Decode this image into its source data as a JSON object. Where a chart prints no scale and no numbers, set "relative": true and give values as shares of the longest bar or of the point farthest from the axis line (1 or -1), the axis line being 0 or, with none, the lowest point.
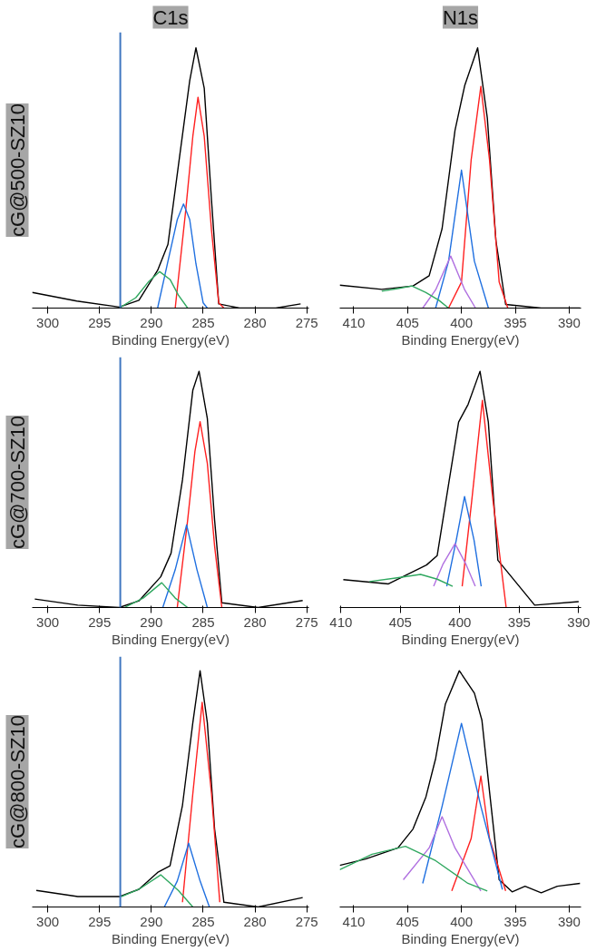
{
  "chart_data": [
    {
      "type": "line",
      "relative": true,
      "title": "C1s",
      "ylabel": "cG@500-SZ10",
      "xlabel": "Binding Energy(eV)",
      "xlim": [
        301.5,
        274.8
      ],
      "xticks": [
        300,
        295,
        290,
        285,
        280,
        275
      ],
      "ref_lines": [
        {
          "axis": "x",
          "value": 293,
          "color": "#3f77c0"
        }
      ],
      "series": [
        {
          "color": "#000000",
          "x": [
            301.5,
            297.2,
            293.1,
            291.2,
            289.4,
            288.4,
            287.4,
            286.3,
            285.7,
            284.9,
            284.2,
            283.5,
            281.5,
            278.0,
            275.6
          ],
          "values": [
            0.06,
            0.027,
            0.004,
            0.03,
            0.145,
            0.245,
            0.545,
            0.874,
            1.0,
            0.845,
            0.416,
            0.016,
            0.0,
            0.0,
            0.016
          ]
        },
        {
          "color": "#ff2020",
          "x": [
            287.7,
            286.7,
            286.0,
            285.5,
            284.9,
            284.2,
            283.5,
            283.0
          ],
          "values": [
            0,
            0.37,
            0.66,
            0.81,
            0.66,
            0.3,
            0.02,
            0
          ]
        },
        {
          "color": "#2070e0",
          "x": [
            289.4,
            288.4,
            287.5,
            286.9,
            286.3,
            285.7,
            285.0,
            284.6
          ],
          "values": [
            0,
            0.18,
            0.34,
            0.4,
            0.34,
            0.17,
            0.02,
            0
          ]
        },
        {
          "color": "#30a860",
          "x": [
            293.1,
            291.5,
            290.3,
            289.2,
            288.2,
            287.4,
            286.5
          ],
          "values": [
            0,
            0.04,
            0.1,
            0.14,
            0.11,
            0.05,
            0
          ]
        }
      ]
    },
    {
      "type": "line",
      "relative": true,
      "title": "N1s",
      "xlabel": "Binding Energy(eV)",
      "xlim": [
        411.3,
        388.9
      ],
      "xticks": [
        410,
        405,
        400,
        395,
        390
      ],
      "series": [
        {
          "color": "#000000",
          "x": [
            411.3,
            407.4,
            404.5,
            403.0,
            401.8,
            400.6,
            399.7,
            398.5,
            397.6,
            396.8,
            395.9,
            392.6,
            389.0
          ],
          "values": [
            0.088,
            0.072,
            0.085,
            0.124,
            0.305,
            0.683,
            0.855,
            1.0,
            0.73,
            0.258,
            0.014,
            0,
            0
          ]
        },
        {
          "color": "#ff2020",
          "x": [
            401.2,
            400.0,
            399.1,
            398.2,
            397.4,
            396.5,
            395.7
          ],
          "values": [
            0,
            0.1,
            0.57,
            0.852,
            0.57,
            0.1,
            0
          ]
        },
        {
          "color": "#2070e0",
          "x": [
            402.4,
            401.2,
            400.0,
            398.8,
            397.5
          ],
          "values": [
            0,
            0.18,
            0.53,
            0.18,
            0
          ]
        },
        {
          "color": "#b070e0",
          "x": [
            403.6,
            402.4,
            401.0,
            399.7,
            398.7
          ],
          "values": [
            0,
            0.07,
            0.2,
            0.07,
            0
          ]
        },
        {
          "color": "#30a860",
          "x": [
            407.4,
            405.9,
            404.6,
            403.3,
            402.1,
            401.2
          ],
          "values": [
            0.065,
            0.075,
            0.085,
            0.06,
            0.03,
            0
          ]
        }
      ]
    },
    {
      "type": "line",
      "relative": true,
      "ylabel": "cG@700-SZ10",
      "xlabel": "Binding Energy(eV)",
      "xlim": [
        301.5,
        274.8
      ],
      "xticks": [
        300,
        295,
        290,
        285,
        280,
        275
      ],
      "ref_lines": [
        {
          "axis": "x",
          "value": 293,
          "color": "#3f77c0"
        }
      ],
      "series": [
        {
          "color": "#000000",
          "x": [
            301.25,
            297.1,
            293.1,
            291.2,
            289.1,
            288.1,
            287.0,
            286.0,
            285.4,
            284.6,
            283.9,
            283.2,
            279.7,
            275.4
          ],
          "values": [
            0.036,
            0.01,
            0,
            0.028,
            0.13,
            0.23,
            0.54,
            0.92,
            1.0,
            0.8,
            0.37,
            0.02,
            0,
            0.03
          ]
        },
        {
          "color": "#ff2020",
          "x": [
            287.5,
            286.5,
            285.8,
            285.3,
            284.6,
            283.9,
            283.2
          ],
          "values": [
            0,
            0.37,
            0.66,
            0.787,
            0.61,
            0.26,
            0
          ]
        },
        {
          "color": "#2070e0",
          "x": [
            288.9,
            287.7,
            286.6,
            285.6,
            284.6
          ],
          "values": [
            0,
            0.16,
            0.35,
            0.16,
            0
          ]
        },
        {
          "color": "#30a860",
          "x": [
            292.6,
            290.8,
            289.0,
            287.7,
            286.5
          ],
          "values": [
            0,
            0.04,
            0.105,
            0.04,
            0
          ]
        }
      ]
    },
    {
      "type": "line",
      "relative": true,
      "xlabel": "Binding Energy(eV)",
      "xlim": [
        410.1,
        389.8
      ],
      "xticks": [
        410,
        405,
        400,
        395,
        390
      ],
      "series": [
        {
          "color": "#000000",
          "x": [
            409.8,
            406.0,
            402.8,
            401.9,
            400.9,
            400.1,
            399.3,
            398.3,
            397.6,
            396.8,
            393.7,
            390.0
          ],
          "values": [
            0.118,
            0.1,
            0.18,
            0.22,
            0.535,
            0.785,
            0.86,
            1.0,
            0.785,
            0.2,
            0.01,
            0.025
          ]
        },
        {
          "color": "#ff2020",
          "x": [
            399.8,
            399.0,
            398.1,
            397.2,
            396.1
          ],
          "values": [
            0.09,
            0.45,
            0.877,
            0.45,
            0
          ]
        },
        {
          "color": "#2070e0",
          "x": [
            401.1,
            400.3,
            399.6,
            398.8,
            398.2
          ],
          "values": [
            0.09,
            0.285,
            0.47,
            0.285,
            0.09
          ]
        },
        {
          "color": "#b070e0",
          "x": [
            402.2,
            401.4,
            400.4,
            399.5,
            398.7
          ],
          "values": [
            0.09,
            0.185,
            0.27,
            0.185,
            0.09
          ]
        },
        {
          "color": "#30a860",
          "x": [
            407.6,
            405.4,
            403.3,
            401.9,
            400.6
          ],
          "values": [
            0.11,
            0.125,
            0.14,
            0.12,
            0.09
          ]
        }
      ]
    },
    {
      "type": "line",
      "relative": true,
      "ylabel": "cG@800-SZ10",
      "xlabel": "Binding Energy(eV)",
      "xlim": [
        301.5,
        274.8
      ],
      "xticks": [
        300,
        295,
        290,
        285,
        280,
        275
      ],
      "ref_lines": [
        {
          "axis": "x",
          "value": 293,
          "color": "#3f77c0"
        }
      ],
      "series": [
        {
          "color": "#000000",
          "x": [
            301.1,
            297.1,
            293.1,
            291.2,
            289.4,
            288.2,
            287.0,
            286.0,
            285.3,
            284.6,
            283.9,
            283.0,
            279.7,
            275.4
          ],
          "values": [
            0.07,
            0.044,
            0.044,
            0.075,
            0.146,
            0.174,
            0.43,
            0.78,
            1.0,
            0.78,
            0.33,
            0.02,
            0,
            0.04
          ]
        },
        {
          "color": "#ff2020",
          "x": [
            287.0,
            286.0,
            285.1,
            284.2,
            283.4
          ],
          "values": [
            0.02,
            0.48,
            0.866,
            0.48,
            0.02
          ]
        },
        {
          "color": "#2070e0",
          "x": [
            288.75,
            287.5,
            286.4,
            285.3,
            284.4
          ],
          "values": [
            0,
            0.11,
            0.27,
            0.11,
            0
          ]
        },
        {
          "color": "#30a860",
          "x": [
            292.9,
            291.2,
            289.1,
            287.4,
            286.0
          ],
          "values": [
            0.044,
            0.075,
            0.136,
            0.07,
            0
          ]
        }
      ]
    },
    {
      "type": "line",
      "relative": true,
      "xlabel": "Binding Energy(eV)",
      "xlim": [
        411.3,
        388.9
      ],
      "xticks": [
        410,
        405,
        400,
        395,
        390
      ],
      "series": [
        {
          "color": "#000000",
          "x": [
            411.3,
            408.9,
            405.9,
            404.5,
            403.3,
            402.4,
            401.5,
            400.2,
            398.8,
            398.1,
            397.4,
            396.5,
            395.3,
            394.1,
            392.6,
            391.1,
            389.0
          ],
          "values": [
            0.176,
            0.203,
            0.25,
            0.33,
            0.466,
            0.628,
            0.858,
            1.0,
            0.905,
            0.79,
            0.49,
            0.115,
            0.064,
            0.088,
            0.06,
            0.088,
            0.1
          ]
        },
        {
          "color": "#ff2020",
          "x": [
            400.9,
            399.1,
            398.2,
            397.4,
            395.9
          ],
          "values": [
            0.068,
            0.29,
            0.554,
            0.29,
            0.068
          ]
        },
        {
          "color": "#2070e0",
          "x": [
            403.6,
            401.8,
            400.0,
            398.2,
            396.2
          ],
          "values": [
            0.1,
            0.426,
            0.777,
            0.426,
            0.074
          ]
        },
        {
          "color": "#b070e0",
          "x": [
            405.4,
            403.0,
            401.8,
            400.6,
            398.2
          ],
          "values": [
            0.115,
            0.25,
            0.382,
            0.25,
            0.068
          ]
        },
        {
          "color": "#30a860",
          "x": [
            411.3,
            408.3,
            405.2,
            402.4,
            399.4,
            397.6
          ],
          "values": [
            0.158,
            0.223,
            0.257,
            0.196,
            0.1,
            0.068
          ]
        }
      ]
    }
  ]
}
